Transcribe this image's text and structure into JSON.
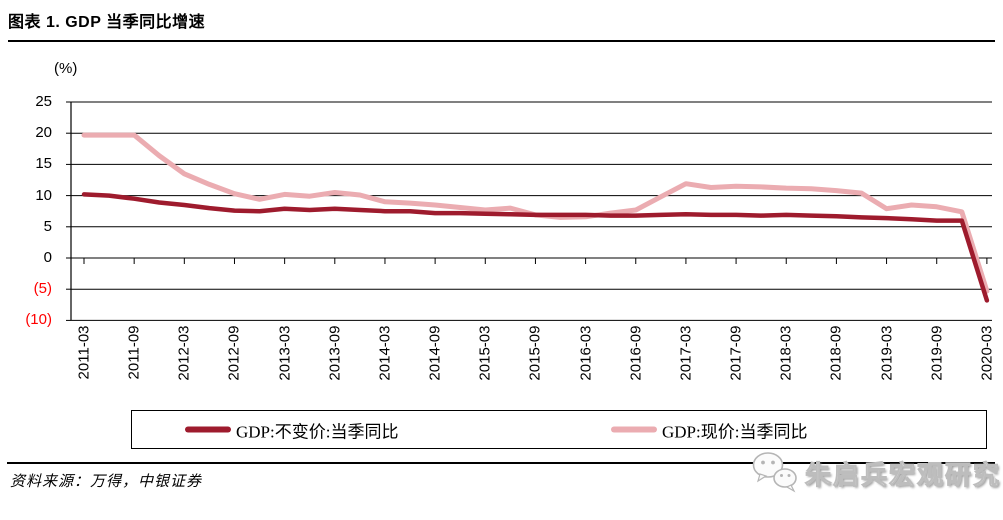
{
  "header": {
    "title": "图表 1. GDP 当季同比增速"
  },
  "chart": {
    "unit_label": "(%)"
  },
  "legend": {
    "items": [
      {
        "label": "GDP:不变价:当季同比",
        "color": "#9E1B2D"
      },
      {
        "label": "GDP:现价:当季同比",
        "color": "#EBACB1"
      }
    ]
  },
  "footer": {
    "source_note": "资料来源：万得，中银证券",
    "watermark_text": "朱启兵宏观研究"
  },
  "colors": {
    "real_line": "#9E1B2D",
    "nominal_line": "#EBACB1",
    "negative_tick_label": "#FF0000",
    "grid": "#000000"
  },
  "chart_data": {
    "type": "line",
    "title": "图表 1. GDP 当季同比增速",
    "ylabel": "(%)",
    "ylim": [
      -10,
      25
    ],
    "ytick_step": 5,
    "ytick_labels": [
      "25",
      "20",
      "15",
      "10",
      "5",
      "0",
      "(5)",
      "(10)"
    ],
    "ytick_values": [
      25,
      20,
      15,
      10,
      5,
      0,
      -5,
      -10
    ],
    "grid": "horizontal",
    "legend_position": "bottom-box",
    "x": [
      "2011-03",
      "2011-06",
      "2011-09",
      "2011-12",
      "2012-03",
      "2012-06",
      "2012-09",
      "2012-12",
      "2013-03",
      "2013-06",
      "2013-09",
      "2013-12",
      "2014-03",
      "2014-06",
      "2014-09",
      "2014-12",
      "2015-03",
      "2015-06",
      "2015-09",
      "2015-12",
      "2016-03",
      "2016-06",
      "2016-09",
      "2016-12",
      "2017-03",
      "2017-06",
      "2017-09",
      "2017-12",
      "2018-03",
      "2018-06",
      "2018-09",
      "2018-12",
      "2019-03",
      "2019-06",
      "2019-09",
      "2019-12",
      "2020-03"
    ],
    "x_labels_shown_every": 2,
    "series": [
      {
        "name": "GDP:现价:当季同比",
        "color": "#EBACB1",
        "stroke_width": 5,
        "values": [
          19.7,
          19.7,
          19.7,
          16.4,
          13.5,
          11.8,
          10.3,
          9.4,
          10.2,
          9.9,
          10.5,
          10.1,
          9.0,
          8.8,
          8.5,
          8.1,
          7.7,
          8.0,
          6.9,
          6.5,
          6.6,
          7.2,
          7.7,
          9.8,
          11.9,
          11.3,
          11.5,
          11.4,
          11.2,
          11.1,
          10.8,
          10.4,
          7.9,
          8.5,
          8.2,
          7.4,
          -5.3
        ]
      },
      {
        "name": "GDP:不变价:当季同比",
        "color": "#9E1B2D",
        "stroke_width": 4.5,
        "values": [
          10.2,
          10.0,
          9.5,
          8.9,
          8.5,
          8.0,
          7.6,
          7.5,
          7.9,
          7.7,
          7.9,
          7.7,
          7.5,
          7.5,
          7.2,
          7.2,
          7.1,
          7.0,
          6.9,
          6.9,
          6.9,
          6.8,
          6.8,
          6.9,
          7.0,
          6.9,
          6.9,
          6.8,
          6.9,
          6.8,
          6.7,
          6.5,
          6.4,
          6.2,
          6.0,
          6.0,
          -6.8
        ]
      }
    ]
  }
}
